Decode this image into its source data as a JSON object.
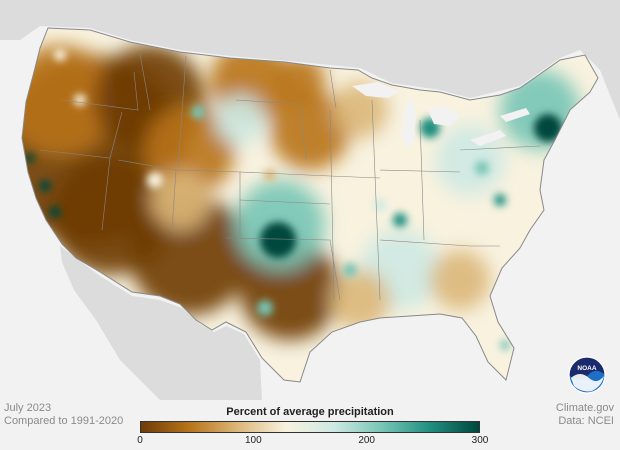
{
  "info_left": {
    "date": "July 2023",
    "baseline": "Compared to 1991-2020"
  },
  "info_right": {
    "source_site": "Climate.gov",
    "data_source": "Data: NCEI"
  },
  "logo": {
    "text": "NOAA"
  },
  "legend": {
    "title": "Percent of average precipitation",
    "ticks": [
      {
        "value": 0,
        "label": "0"
      },
      {
        "value": 100,
        "label": "100"
      },
      {
        "value": 200,
        "label": "200"
      },
      {
        "value": 300,
        "label": "300"
      }
    ],
    "min": 0,
    "max": 300,
    "colors": [
      "#6e3c06",
      "#b8731a",
      "#dcb779",
      "#f8f2df",
      "#cde9e3",
      "#77c5b6",
      "#1f8e7f",
      "#00473c"
    ]
  },
  "map": {
    "subject": "Percent of average precipitation, contiguous United States",
    "water_color": "#f2f2f2",
    "land_color": "#dcdcdc",
    "border_color": "#888888"
  }
}
